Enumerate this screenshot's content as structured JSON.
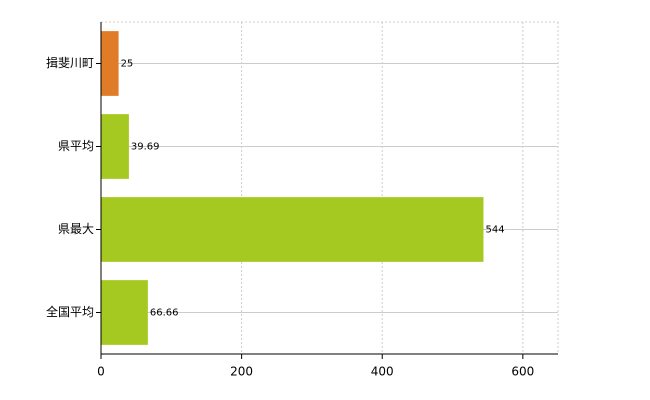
{
  "chart_data": {
    "type": "barh",
    "categories": [
      "揖斐川町",
      "県平均",
      "県最大",
      "全国平均"
    ],
    "values": [
      25,
      39.69,
      544,
      66.66
    ],
    "colors": [
      "#e07b28",
      "#a5c920",
      "#a5c920",
      "#a5c920"
    ],
    "xlim": [
      0,
      650
    ],
    "xticks": [
      0,
      200,
      400,
      600
    ],
    "grid": true
  }
}
